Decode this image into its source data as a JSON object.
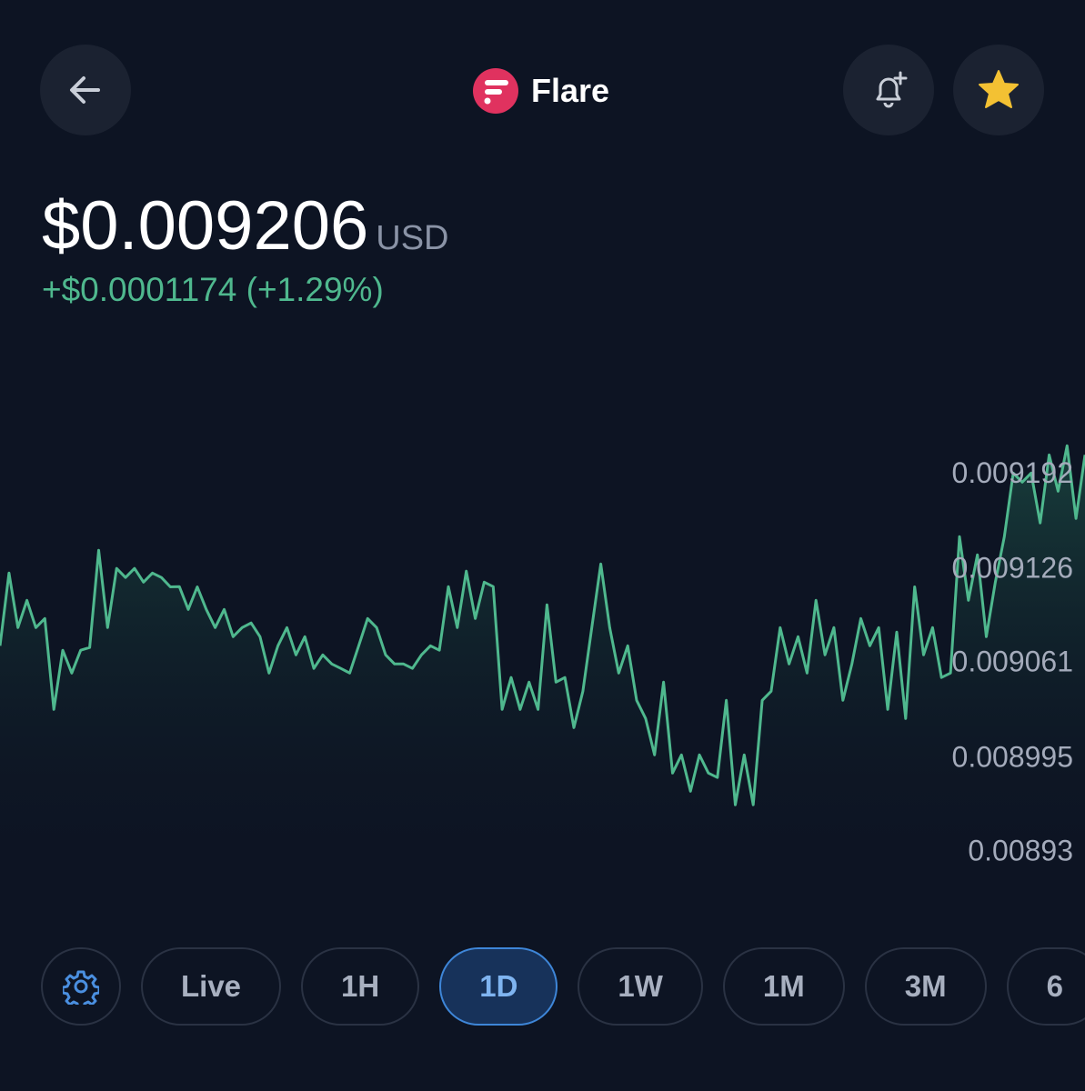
{
  "header": {
    "title": "Flare"
  },
  "price": {
    "value": "$0.009206",
    "currency": "USD",
    "change": "+$0.0001174 (+1.29%)"
  },
  "chart_data": {
    "type": "line",
    "color": "#4fb88e",
    "values": [
      0.0090736,
      0.009124,
      0.0090862,
      0.0091051,
      0.0090862,
      0.0090925,
      0.0090295,
      0.0090705,
      0.0090547,
      0.0090705,
      0.0090724,
      0.0091398,
      0.0090862,
      0.0091272,
      0.0091209,
      0.0091272,
      0.0091177,
      0.009124,
      0.0091209,
      0.0091144,
      0.0091146,
      0.0090988,
      0.0091144,
      0.0090988,
      0.0090862,
      0.0090988,
      0.0090799,
      0.0090862,
      0.0090894,
      0.0090799,
      0.0090547,
      0.0090736,
      0.0090862,
      0.0090673,
      0.0090799,
      0.0090579,
      0.0090673,
      0.009061,
      0.0090579,
      0.0090547,
      0.0090736,
      0.0090925,
      0.0090862,
      0.0090673,
      0.009061,
      0.009061,
      0.0090579,
      0.0090673,
      0.0090736,
      0.0090705,
      0.0091146,
      0.0090862,
      0.0091253,
      0.0090925,
      0.0091177,
      0.0091146,
      0.0090295,
      0.0090516,
      0.0090295,
      0.0090484,
      0.0090295,
      0.009102,
      0.0090484,
      0.0090516,
      0.0090169,
      0.0090421,
      0.0090862,
      0.0091303,
      0.0090862,
      0.0090547,
      0.0090736,
      0.0090358,
      0.0090232,
      0.008998,
      0.0090484,
      0.0089854,
      0.008998,
      0.0089728,
      0.008998,
      0.0089854,
      0.0089823,
      0.0090358,
      0.0089634,
      0.008998,
      0.0089634,
      0.0090358,
      0.0090421,
      0.0090862,
      0.009061,
      0.0090799,
      0.0090547,
      0.0091051,
      0.0090673,
      0.0090862,
      0.0090358,
      0.009061,
      0.0090925,
      0.0090736,
      0.0090862,
      0.0090295,
      0.0090831,
      0.0090232,
      0.0091144,
      0.0090673,
      0.0090862,
      0.0090516,
      0.0090547,
      0.0091492,
      0.0091051,
      0.0091366,
      0.0090799,
      0.0091177,
      0.0091492,
      0.0091933,
      0.009187,
      0.0091933,
      0.0091587,
      0.0092059,
      0.0091807,
      0.0092122,
      0.0091618,
      0.0092059
    ],
    "ylim": [
      0.008915,
      0.009225
    ],
    "yticks": [
      0.00893,
      0.008995,
      0.009061,
      0.009126,
      0.009192
    ]
  },
  "timeframes": [
    "Live",
    "1H",
    "1D",
    "1W",
    "1M",
    "3M",
    "6"
  ],
  "selected_timeframe": "1D"
}
